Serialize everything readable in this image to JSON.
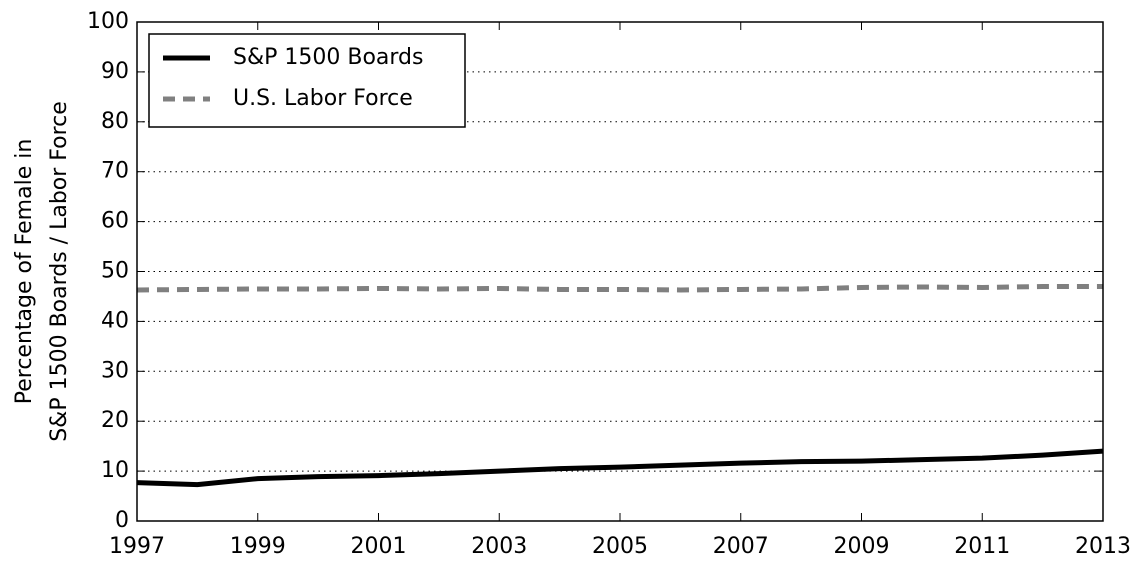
{
  "chart_data": {
    "type": "line",
    "ylabel": [
      "Percentage of Female in",
      "S&P 1500 Boards / Labor Force"
    ],
    "x": [
      1997,
      1998,
      1999,
      2000,
      2001,
      2002,
      2003,
      2004,
      2005,
      2006,
      2007,
      2008,
      2009,
      2010,
      2011,
      2012,
      2013
    ],
    "series": [
      {
        "name": "S&P 1500 Boards",
        "color": "#000000",
        "dash": "solid",
        "values": [
          7.7,
          7.3,
          8.5,
          8.9,
          9.1,
          9.5,
          10.0,
          10.5,
          10.8,
          11.2,
          11.6,
          11.9,
          12.0,
          12.3,
          12.6,
          13.2,
          14.0
        ]
      },
      {
        "name": "U.S. Labor Force",
        "color": "#808080",
        "dash": "dashed",
        "values": [
          46.3,
          46.4,
          46.5,
          46.5,
          46.6,
          46.5,
          46.6,
          46.4,
          46.4,
          46.3,
          46.4,
          46.5,
          46.8,
          46.9,
          46.8,
          47.0,
          47.0
        ]
      }
    ],
    "xlim": [
      1997,
      2013
    ],
    "xticks": [
      1997,
      1999,
      2001,
      2003,
      2005,
      2007,
      2009,
      2011,
      2013
    ],
    "ylim": [
      0,
      100
    ],
    "yticks": [
      0,
      10,
      20,
      30,
      40,
      50,
      60,
      70,
      80,
      90,
      100
    ],
    "grid": true,
    "legend": "upper left"
  }
}
